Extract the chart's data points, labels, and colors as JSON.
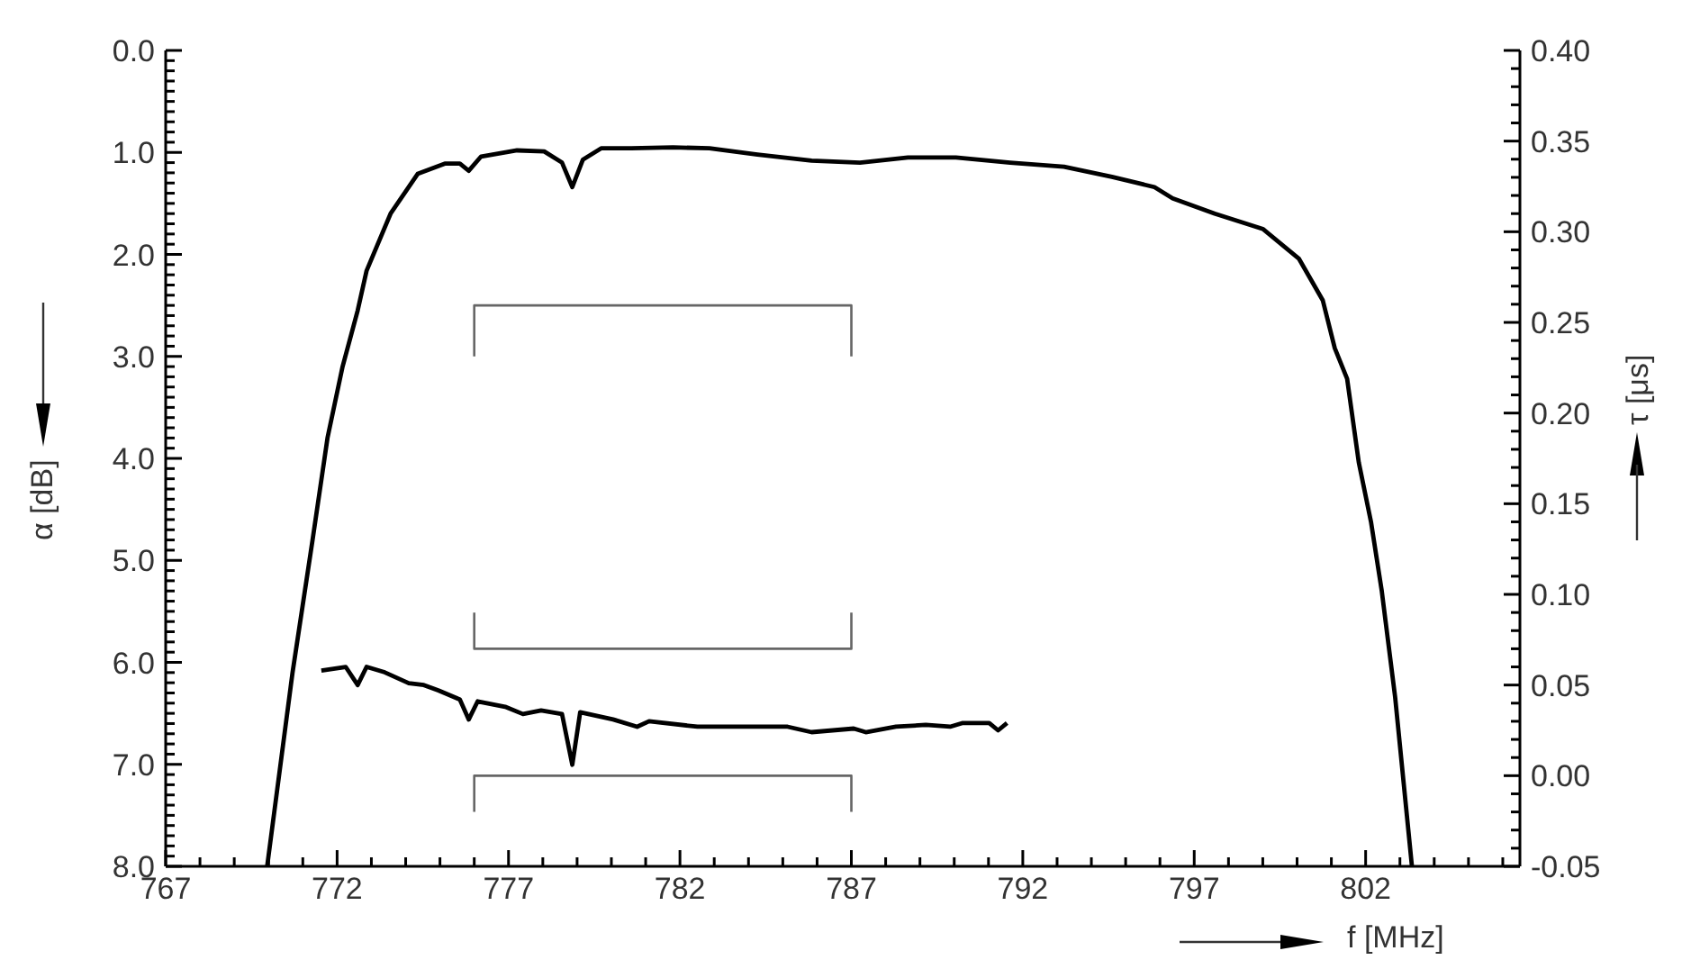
{
  "chart_data": {
    "type": "line",
    "xlabel": "f [MHz]",
    "ylabel": "α [dB]",
    "y2label": "τ [μs]",
    "marker": "none",
    "xlim": [
      767,
      806.5
    ],
    "ylim": [
      8,
      0
    ],
    "y2lim": [
      -0.05,
      0.4
    ],
    "xticks": [
      767,
      {
        "value": 768,
        "label": null
      },
      {
        "value": 769,
        "label": null
      },
      {
        "value": 770,
        "label": null
      },
      {
        "value": 771,
        "label": null
      },
      772,
      {
        "value": 773,
        "label": null
      },
      {
        "value": 774,
        "label": null
      },
      {
        "value": 775,
        "label": null
      },
      {
        "value": 776,
        "label": null
      },
      777,
      {
        "value": 778,
        "label": null
      },
      {
        "value": 779,
        "label": null
      },
      {
        "value": 780,
        "label": null
      },
      {
        "value": 781,
        "label": null
      },
      782,
      {
        "value": 783,
        "label": null
      },
      {
        "value": 784,
        "label": null
      },
      {
        "value": 785,
        "label": null
      },
      {
        "value": 786,
        "label": null
      },
      787,
      {
        "value": 788,
        "label": null
      },
      {
        "value": 789,
        "label": null
      },
      {
        "value": 790,
        "label": null
      },
      {
        "value": 791,
        "label": null
      },
      792,
      {
        "value": 793,
        "label": null
      },
      {
        "value": 794,
        "label": null
      },
      {
        "value": 795,
        "label": null
      },
      {
        "value": 796,
        "label": null
      },
      797,
      {
        "value": 798,
        "label": null
      },
      {
        "value": 799,
        "label": null
      },
      {
        "value": 800,
        "label": null
      },
      {
        "value": 801,
        "label": null
      },
      802,
      {
        "value": 803,
        "label": null
      },
      {
        "value": 804,
        "label": null
      },
      {
        "value": 805,
        "label": null
      },
      {
        "value": 806,
        "label": null
      }
    ],
    "yticks": [
      {
        "value": 0,
        "label": "0.0"
      },
      {
        "value": 0.1,
        "label": null
      },
      {
        "value": 0.2,
        "label": null
      },
      {
        "value": 0.3,
        "label": null
      },
      {
        "value": 0.4,
        "label": null
      },
      {
        "value": 0.5,
        "label": null
      },
      {
        "value": 0.6,
        "label": null
      },
      {
        "value": 0.7,
        "label": null
      },
      {
        "value": 0.8,
        "label": null
      },
      {
        "value": 0.9,
        "label": null
      },
      {
        "value": 1,
        "label": "1.0"
      },
      {
        "value": 1.1,
        "label": null
      },
      {
        "value": 1.2,
        "label": null
      },
      {
        "value": 1.3,
        "label": null
      },
      {
        "value": 1.4,
        "label": null
      },
      {
        "value": 1.5,
        "label": null
      },
      {
        "value": 1.6,
        "label": null
      },
      {
        "value": 1.7,
        "label": null
      },
      {
        "value": 1.8,
        "label": null
      },
      {
        "value": 1.9,
        "label": null
      },
      {
        "value": 2,
        "label": "2.0"
      },
      {
        "value": 2.1,
        "label": null
      },
      {
        "value": 2.2,
        "label": null
      },
      {
        "value": 2.3,
        "label": null
      },
      {
        "value": 2.4,
        "label": null
      },
      {
        "value": 2.5,
        "label": null
      },
      {
        "value": 2.6,
        "label": null
      },
      {
        "value": 2.7,
        "label": null
      },
      {
        "value": 2.8,
        "label": null
      },
      {
        "value": 2.9,
        "label": null
      },
      {
        "value": 3,
        "label": "3.0"
      },
      {
        "value": 3.1,
        "label": null
      },
      {
        "value": 3.2,
        "label": null
      },
      {
        "value": 3.3,
        "label": null
      },
      {
        "value": 3.4,
        "label": null
      },
      {
        "value": 3.5,
        "label": null
      },
      {
        "value": 3.6,
        "label": null
      },
      {
        "value": 3.7,
        "label": null
      },
      {
        "value": 3.8,
        "label": null
      },
      {
        "value": 3.9,
        "label": null
      },
      {
        "value": 4,
        "label": "4.0"
      },
      {
        "value": 4.1,
        "label": null
      },
      {
        "value": 4.2,
        "label": null
      },
      {
        "value": 4.3,
        "label": null
      },
      {
        "value": 4.4,
        "label": null
      },
      {
        "value": 4.5,
        "label": null
      },
      {
        "value": 4.6,
        "label": null
      },
      {
        "value": 4.7,
        "label": null
      },
      {
        "value": 4.8,
        "label": null
      },
      {
        "value": 4.9,
        "label": null
      },
      {
        "value": 5,
        "label": "5.0"
      },
      {
        "value": 5.1,
        "label": null
      },
      {
        "value": 5.2,
        "label": null
      },
      {
        "value": 5.3,
        "label": null
      },
      {
        "value": 5.4,
        "label": null
      },
      {
        "value": 5.5,
        "label": null
      },
      {
        "value": 5.6,
        "label": null
      },
      {
        "value": 5.7,
        "label": null
      },
      {
        "value": 5.8,
        "label": null
      },
      {
        "value": 5.9,
        "label": null
      },
      {
        "value": 6,
        "label": "6.0"
      },
      {
        "value": 6.1,
        "label": null
      },
      {
        "value": 6.2,
        "label": null
      },
      {
        "value": 6.3,
        "label": null
      },
      {
        "value": 6.4,
        "label": null
      },
      {
        "value": 6.5,
        "label": null
      },
      {
        "value": 6.6,
        "label": null
      },
      {
        "value": 6.7,
        "label": null
      },
      {
        "value": 6.8,
        "label": null
      },
      {
        "value": 6.9,
        "label": null
      },
      {
        "value": 7,
        "label": "7.0"
      },
      {
        "value": 7.1,
        "label": null
      },
      {
        "value": 7.2,
        "label": null
      },
      {
        "value": 7.3,
        "label": null
      },
      {
        "value": 7.4,
        "label": null
      },
      {
        "value": 7.5,
        "label": null
      },
      {
        "value": 7.6,
        "label": null
      },
      {
        "value": 7.7,
        "label": null
      },
      {
        "value": 7.8,
        "label": null
      },
      {
        "value": 7.9,
        "label": null
      },
      {
        "value": 8,
        "label": "8.0"
      }
    ],
    "y2ticks": [
      {
        "value": -0.05,
        "label": "-0.05"
      },
      {
        "value": -0.04,
        "label": null
      },
      {
        "value": -0.03,
        "label": null
      },
      {
        "value": -0.02,
        "label": null
      },
      {
        "value": -0.01,
        "label": null
      },
      {
        "value": 0,
        "label": "0.00"
      },
      {
        "value": 0.01,
        "label": null
      },
      {
        "value": 0.02,
        "label": null
      },
      {
        "value": 0.03,
        "label": null
      },
      {
        "value": 0.04,
        "label": null
      },
      {
        "value": 0.05,
        "label": "0.05"
      },
      {
        "value": 0.06,
        "label": null
      },
      {
        "value": 0.07,
        "label": null
      },
      {
        "value": 0.08,
        "label": null
      },
      {
        "value": 0.09,
        "label": null
      },
      {
        "value": 0.1,
        "label": "0.10"
      },
      {
        "value": 0.11,
        "label": null
      },
      {
        "value": 0.12,
        "label": null
      },
      {
        "value": 0.13,
        "label": null
      },
      {
        "value": 0.14,
        "label": null
      },
      {
        "value": 0.15,
        "label": "0.15"
      },
      {
        "value": 0.16,
        "label": null
      },
      {
        "value": 0.17,
        "label": null
      },
      {
        "value": 0.18,
        "label": null
      },
      {
        "value": 0.19,
        "label": null
      },
      {
        "value": 0.2,
        "label": "0.20"
      },
      {
        "value": 0.21,
        "label": null
      },
      {
        "value": 0.22,
        "label": null
      },
      {
        "value": 0.23,
        "label": null
      },
      {
        "value": 0.24,
        "label": null
      },
      {
        "value": 0.25,
        "label": "0.25"
      },
      {
        "value": 0.26,
        "label": null
      },
      {
        "value": 0.27,
        "label": null
      },
      {
        "value": 0.28,
        "label": null
      },
      {
        "value": 0.29,
        "label": null
      },
      {
        "value": 0.3,
        "label": "0.30"
      },
      {
        "value": 0.31,
        "label": null
      },
      {
        "value": 0.32,
        "label": null
      },
      {
        "value": 0.33,
        "label": null
      },
      {
        "value": 0.34,
        "label": null
      },
      {
        "value": 0.35,
        "label": "0.35"
      },
      {
        "value": 0.36,
        "label": null
      },
      {
        "value": 0.37,
        "label": null
      },
      {
        "value": 0.38,
        "label": null
      },
      {
        "value": 0.39,
        "label": null
      },
      {
        "value": 0.4,
        "label": "0.40"
      }
    ],
    "series": [
      {
        "type": "line",
        "color": "#000000",
        "x": [
          769.96,
          770.7,
          771.28,
          771.72,
          772.16,
          772.6,
          772.86,
          773.56,
          774.35,
          775.14,
          775.58,
          775.84,
          776.2,
          777.25,
          778.04,
          778.56,
          778.86,
          779.17,
          779.7,
          780.58,
          781.8,
          782.86,
          784.26,
          785.84,
          787.25,
          788.65,
          790.05,
          791.63,
          793.2,
          794.6,
          795.84,
          796.37,
          797.6,
          799.0,
          800.05,
          800.75,
          801.1,
          801.46,
          801.8,
          802.16,
          802.47,
          802.86,
          803.35
        ],
        "values": [
          8.0,
          6.1,
          4.81,
          3.8,
          3.1,
          2.55,
          2.16,
          1.6,
          1.21,
          1.11,
          1.11,
          1.18,
          1.04,
          0.98,
          0.99,
          1.1,
          1.34,
          1.07,
          0.96,
          0.96,
          0.95,
          0.96,
          1.02,
          1.08,
          1.1,
          1.05,
          1.05,
          1.1,
          1.14,
          1.24,
          1.34,
          1.45,
          1.6,
          1.75,
          2.04,
          2.45,
          2.92,
          3.22,
          4.04,
          4.63,
          5.3,
          6.34,
          8.0
        ]
      },
      {
        "type": "line",
        "color": "#000000",
        "axis": "y2",
        "x": [
          771.54,
          772.25,
          772.6,
          772.86,
          773.39,
          774.09,
          774.53,
          774.96,
          775.58,
          775.84,
          776.1,
          776.9,
          777.42,
          777.95,
          778.56,
          778.86,
          779.09,
          780.05,
          780.75,
          781.1,
          782.51,
          783.74,
          785.14,
          785.84,
          787.07,
          787.42,
          788.3,
          789.17,
          789.88,
          790.23,
          791.02,
          791.28,
          791.54
        ],
        "values": [
          0.058,
          0.06,
          0.05,
          0.06,
          0.057,
          0.051,
          0.05,
          0.047,
          0.042,
          0.031,
          0.041,
          0.038,
          0.034,
          0.036,
          0.034,
          0.006,
          0.035,
          0.031,
          0.027,
          0.03,
          0.027,
          0.027,
          0.027,
          0.024,
          0.026,
          0.024,
          0.027,
          0.028,
          0.027,
          0.029,
          0.029,
          0.025,
          0.029
        ]
      },
      {
        "type": "line",
        "color": "#666666",
        "x": [
          776,
          776,
          787,
          787
        ],
        "values": [
          3.0,
          2.5,
          2.5,
          3.0
        ]
      },
      {
        "type": "line",
        "color": "#666666",
        "axis": "y2",
        "x": [
          776,
          776,
          787,
          787
        ],
        "values": [
          0.09,
          0.07,
          0.07,
          0.09
        ]
      },
      {
        "type": "line",
        "color": "#666666",
        "axis": "y2",
        "x": [
          776,
          776,
          787,
          787
        ],
        "values": [
          -0.02,
          0,
          0,
          -0.02
        ]
      }
    ]
  }
}
